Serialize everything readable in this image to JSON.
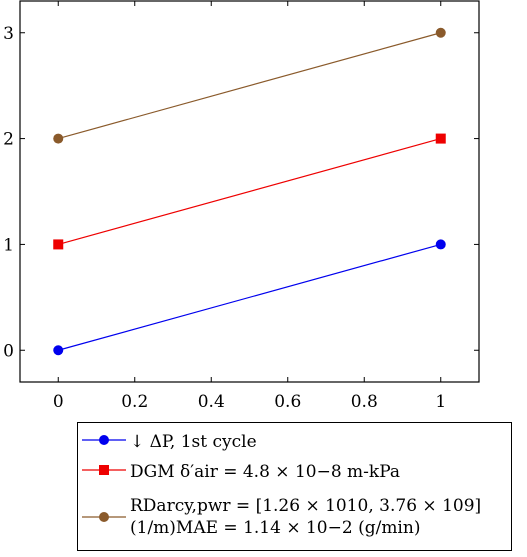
{
  "chart_data": {
    "type": "line",
    "x": [
      0,
      1
    ],
    "xlim": [
      -0.1,
      1.1
    ],
    "ylim": [
      -0.3,
      3.3
    ],
    "xticks": [
      "0",
      "0.2",
      "0.4",
      "0.6",
      "0.8",
      "1"
    ],
    "yticks": [
      "0",
      "1",
      "2",
      "3"
    ],
    "grid": false,
    "legend_placement": "bottom",
    "series": [
      {
        "name": "↓ ΔP, 1st cycle",
        "values": [
          0,
          1
        ],
        "color": "#0000ee",
        "marker": "circle"
      },
      {
        "name": "DGM δ′air = 4.8 × 10−8 m-kPa",
        "values": [
          1,
          2
        ],
        "color": "#ee0000",
        "marker": "square"
      },
      {
        "name": "RDarcy,pwr = [1.26 × 1010, 3.76 × 109]\n(1/m)MAE = 1.14 × 10−2 (g/min)",
        "values": [
          2,
          3
        ],
        "color": "#8a5a2b",
        "marker": "circle"
      }
    ]
  }
}
